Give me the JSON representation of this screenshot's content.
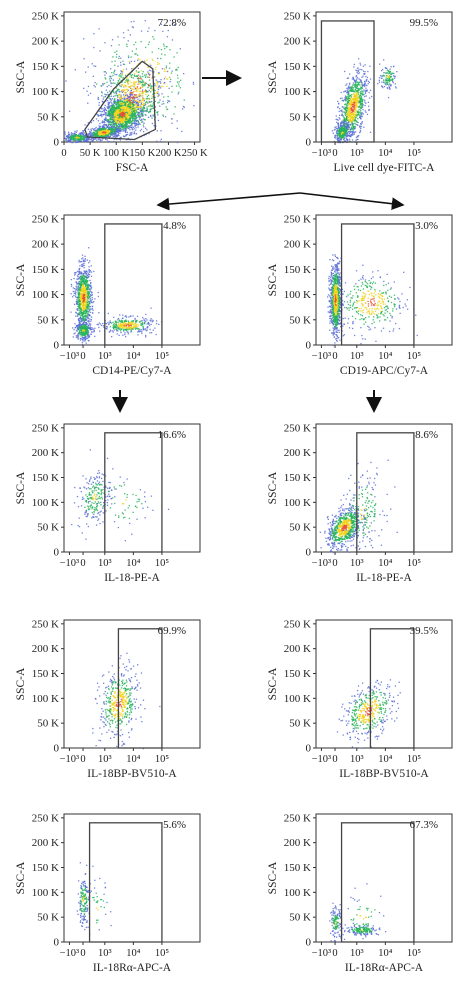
{
  "chart_data": [
    {
      "type": "scatter",
      "id": "p1",
      "title": "",
      "xlabel": "FSC-A",
      "ylabel": "SSC-A",
      "xscale": "linear",
      "xticks": [
        "0",
        "50 K",
        "100 K",
        "150 K",
        "200 K",
        "250 K"
      ],
      "yticks": [
        "0",
        "50 K",
        "100 K",
        "150 K",
        "200 K",
        "250 K"
      ],
      "ylim": [
        0,
        250000
      ],
      "xlim": [
        0,
        250000
      ],
      "gate": {
        "shape": "polygon",
        "percent": "72.8%",
        "vertices": [
          [
            45000,
            10000
          ],
          [
            40000,
            25000
          ],
          [
            95000,
            105000
          ],
          [
            150000,
            160000
          ],
          [
            170000,
            145000
          ],
          [
            175000,
            25000
          ],
          [
            135000,
            5000
          ]
        ]
      }
    },
    {
      "type": "scatter",
      "id": "p2",
      "title": "",
      "xlabel": "Live cell dye-FITC-A",
      "ylabel": "SSC-A",
      "xscale": "biexponential",
      "xticks": [
        "−10³",
        "0",
        "10³",
        "10⁴",
        "10⁵"
      ],
      "yticks": [
        "0",
        "50 K",
        "100 K",
        "150 K",
        "200 K",
        "250 K"
      ],
      "ylim": [
        0,
        250000
      ],
      "gate": {
        "shape": "rect",
        "percent": "99.5%",
        "x": [
          "−10³",
          "4000"
        ],
        "y": [
          0,
          240000
        ]
      }
    },
    {
      "type": "scatter",
      "id": "p3",
      "title": "",
      "xlabel": "CD14-PE/Cy7-A",
      "ylabel": "SSC-A",
      "xscale": "biexponential",
      "xticks": [
        "−10³",
        "0",
        "10³",
        "10⁴",
        "10⁵"
      ],
      "yticks": [
        "0",
        "50 K",
        "100 K",
        "150 K",
        "200 K",
        "250 K"
      ],
      "ylim": [
        0,
        250000
      ],
      "gate": {
        "shape": "rect",
        "percent": "4.8%",
        "x": [
          "10³",
          "10⁵"
        ],
        "y": [
          0,
          240000
        ]
      }
    },
    {
      "type": "scatter",
      "id": "p4",
      "title": "",
      "xlabel": "CD19-APC/Cy7-A",
      "ylabel": "SSC-A",
      "xscale": "biexponential",
      "xticks": [
        "−10³",
        "0",
        "10³",
        "10⁴",
        "10⁵"
      ],
      "yticks": [
        "0",
        "50 K",
        "100 K",
        "150 K",
        "200 K",
        "250 K"
      ],
      "ylim": [
        0,
        250000
      ],
      "gate": {
        "shape": "rect",
        "percent": "3.0%",
        "x": [
          "300",
          "10⁵"
        ],
        "y": [
          0,
          240000
        ]
      }
    },
    {
      "type": "scatter",
      "id": "p5",
      "title": "",
      "xlabel": "IL-18-PE-A",
      "ylabel": "SSC-A",
      "xscale": "biexponential",
      "xticks": [
        "−10³",
        "0",
        "10³",
        "10⁴",
        "10⁵"
      ],
      "yticks": [
        "0",
        "50 K",
        "100 K",
        "150 K",
        "200 K",
        "250 K"
      ],
      "ylim": [
        0,
        250000
      ],
      "gate": {
        "shape": "rect",
        "percent": "16.6%",
        "x": [
          "10³",
          "10⁵"
        ],
        "y": [
          0,
          240000
        ]
      }
    },
    {
      "type": "scatter",
      "id": "p6",
      "title": "",
      "xlabel": "IL-18-PE-A",
      "ylabel": "SSC-A",
      "xscale": "biexponential",
      "xticks": [
        "−10³",
        "0",
        "10³",
        "10⁴",
        "10⁵"
      ],
      "yticks": [
        "0",
        "50 K",
        "100 K",
        "150 K",
        "200 K",
        "250 K"
      ],
      "ylim": [
        0,
        250000
      ],
      "gate": {
        "shape": "rect",
        "percent": "8.6%",
        "x": [
          "10³",
          "10⁵"
        ],
        "y": [
          0,
          240000
        ]
      }
    },
    {
      "type": "scatter",
      "id": "p7",
      "title": "",
      "xlabel": "IL-18BP-BV510-A",
      "ylabel": "SSC-A",
      "xscale": "biexponential",
      "xticks": [
        "−10³",
        "0",
        "10³",
        "10⁴",
        "10⁵"
      ],
      "yticks": [
        "0",
        "50 K",
        "100 K",
        "150 K",
        "200 K",
        "250 K"
      ],
      "ylim": [
        0,
        250000
      ],
      "gate": {
        "shape": "rect",
        "percent": "69.9%",
        "x": [
          "3000",
          "10⁵"
        ],
        "y": [
          0,
          240000
        ]
      }
    },
    {
      "type": "scatter",
      "id": "p8",
      "title": "",
      "xlabel": "IL-18BP-BV510-A",
      "ylabel": "SSC-A",
      "xscale": "biexponential",
      "xticks": [
        "−10³",
        "0",
        "10³",
        "10⁴",
        "10⁵"
      ],
      "yticks": [
        "0",
        "50 K",
        "100 K",
        "150 K",
        "200 K",
        "250 K"
      ],
      "ylim": [
        0,
        250000
      ],
      "gate": {
        "shape": "rect",
        "percent": "39.5%",
        "x": [
          "3000",
          "10⁵"
        ],
        "y": [
          0,
          240000
        ]
      }
    },
    {
      "type": "scatter",
      "id": "p9",
      "title": "",
      "xlabel": "IL-18Rα-APC-A",
      "ylabel": "SSC-A",
      "xscale": "biexponential",
      "xticks": [
        "−10³",
        "0",
        "10³",
        "10⁴",
        "10⁵"
      ],
      "yticks": [
        "0",
        "50 K",
        "100 K",
        "150 K",
        "200 K",
        "250 K"
      ],
      "ylim": [
        0,
        250000
      ],
      "gate": {
        "shape": "rect",
        "percent": "5.6%",
        "x": [
          "300",
          "10⁵"
        ],
        "y": [
          0,
          240000
        ]
      }
    },
    {
      "type": "scatter",
      "id": "p10",
      "title": "",
      "xlabel": "IL-18Rα-APC-A",
      "ylabel": "SSC-A",
      "xscale": "biexponential",
      "xticks": [
        "−10³",
        "0",
        "10³",
        "10⁴",
        "10⁵"
      ],
      "yticks": [
        "0",
        "50 K",
        "100 K",
        "150 K",
        "200 K",
        "250 K"
      ],
      "ylim": [
        0,
        250000
      ],
      "gate": {
        "shape": "rect",
        "percent": "67.3%",
        "x": [
          "300",
          "10⁵"
        ],
        "y": [
          0,
          240000
        ]
      }
    }
  ],
  "colors": {
    "sparse": "#5a6fd6",
    "dense": "#27b35a",
    "core": "#f2d21b",
    "peak": "#e8503a",
    "axis": "#333333",
    "gate": "#444444"
  }
}
